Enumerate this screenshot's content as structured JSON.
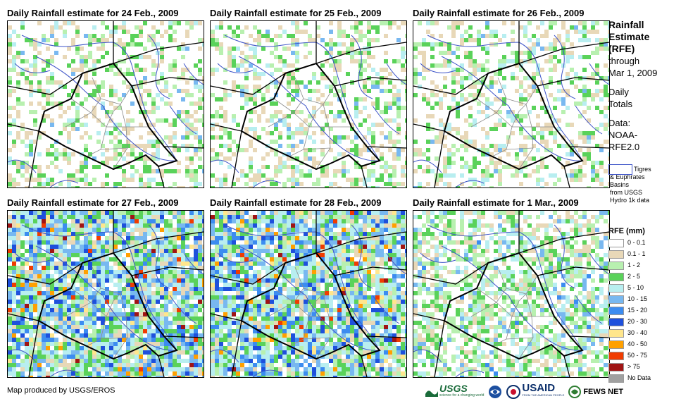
{
  "panels": [
    {
      "title": "Daily Rainfall estimate for 24 Feb., 2009",
      "rain_level": "light"
    },
    {
      "title": "Daily Rainfall estimate for 25 Feb., 2009",
      "rain_level": "light"
    },
    {
      "title": "Daily Rainfall estimate for 26 Feb., 2009",
      "rain_level": "light"
    },
    {
      "title": "Daily Rainfall estimate for 27 Feb., 2009",
      "rain_level": "heavy"
    },
    {
      "title": "Daily Rainfall estimate for 28 Feb., 2009",
      "rain_level": "heavy"
    },
    {
      "title": "Daily Rainfall estimate for 1 Mar., 2009",
      "rain_level": "moderate"
    }
  ],
  "sidebar": {
    "heading_lines": [
      "Rainfall",
      "Estimate",
      "(RFE)"
    ],
    "period_lines": [
      "through",
      "Mar 1, 2009"
    ],
    "totals_lines": [
      "Daily",
      "Totals"
    ],
    "data_lines": [
      "Data:",
      "NOAA-",
      "RFE2.0"
    ]
  },
  "basin_legend": {
    "label": "Tigres",
    "detail_lines": [
      "& Euphrates",
      "Basins",
      "from USGS",
      "Hydro 1k data"
    ],
    "swatch_color": "#3f55c8"
  },
  "legend": {
    "title": "RFE (mm)",
    "classes": [
      {
        "label": "0 - 0.1",
        "color": "#ffffff"
      },
      {
        "label": "0.1 - 1",
        "color": "#e8d8b8"
      },
      {
        "label": "1 - 2",
        "color": "#b8f0b0"
      },
      {
        "label": "2 - 5",
        "color": "#5ad25a"
      },
      {
        "label": "5 - 10",
        "color": "#b8eef0"
      },
      {
        "label": "10 - 15",
        "color": "#78b8f0"
      },
      {
        "label": "15 - 20",
        "color": "#3c8cf0"
      },
      {
        "label": "20 - 30",
        "color": "#1e50dc"
      },
      {
        "label": "30 - 40",
        "color": "#ffe68c"
      },
      {
        "label": "40 - 50",
        "color": "#ffa000"
      },
      {
        "label": "50 - 75",
        "color": "#f03c00"
      },
      {
        "label": "> 75",
        "color": "#a01414"
      },
      {
        "label": "No Data",
        "color": "#a0a0a0"
      }
    ]
  },
  "credit": "Map produced by USGS/EROS",
  "logos": {
    "usgs": "USGS",
    "usgs_tagline": "science for a changing world",
    "usaid": "USAID",
    "usaid_tagline": "FROM THE AMERICAN PEOPLE",
    "fews": "FEWS NET"
  },
  "map_colors": {
    "border": "#000000",
    "province": "#8c8c8c",
    "basin": "#3f55c8"
  }
}
